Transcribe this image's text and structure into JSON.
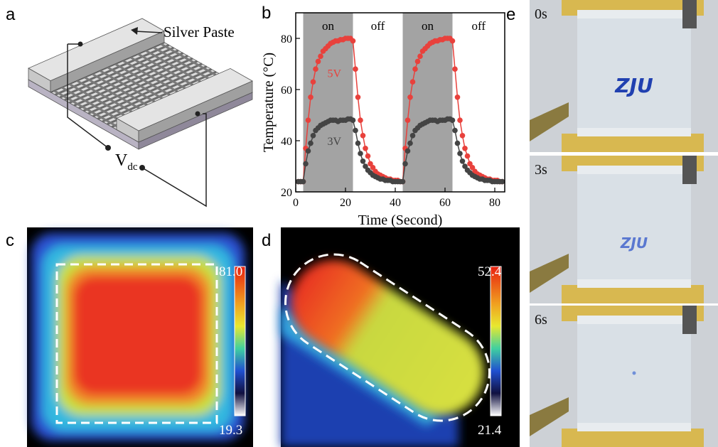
{
  "panels": {
    "a": {
      "label": "a",
      "callout": "Silver Paste",
      "voltage": "V",
      "voltage_subscript": "dc"
    },
    "b": {
      "label": "b"
    },
    "c": {
      "label": "c",
      "scale_max": "81.0",
      "scale_min": "19.3"
    },
    "d": {
      "label": "d",
      "scale_max": "52.4",
      "scale_min": "21.4"
    },
    "e": {
      "label": "e",
      "frames": [
        {
          "time": "0s",
          "text": "ZJU"
        },
        {
          "time": "3s",
          "text": "ZJU"
        },
        {
          "time": "6s"
        }
      ]
    }
  },
  "chart_data": {
    "type": "line",
    "xlabel": "Time (Second)",
    "ylabel": "Temperature (°C)",
    "x": [
      1,
      2,
      3,
      4,
      5,
      6,
      7,
      8,
      9,
      10,
      11,
      12,
      13,
      14,
      15,
      16,
      17,
      18,
      19,
      20,
      21,
      22,
      23,
      24,
      25,
      26,
      27,
      28,
      29,
      30,
      31,
      32,
      33,
      34,
      35,
      36,
      37,
      38,
      39,
      40,
      41,
      42,
      43,
      44,
      45,
      46,
      47,
      48,
      49,
      50,
      51,
      52,
      53,
      54,
      55,
      56,
      57,
      58,
      59,
      60,
      61,
      62,
      63,
      64,
      65,
      66,
      67,
      68,
      69,
      70,
      71,
      72,
      73,
      74,
      75,
      76,
      77,
      78,
      79,
      80,
      81,
      82,
      83
    ],
    "series": [
      {
        "name": "5V",
        "color": "#e8413c",
        "values": [
          24,
          24,
          24,
          37,
          48,
          57,
          63,
          68,
          71,
          73,
          75,
          76,
          77,
          78,
          78.5,
          79,
          79,
          79.5,
          79.5,
          80,
          80,
          80,
          79,
          68,
          57,
          48,
          42,
          37,
          34,
          31,
          29.5,
          28,
          27,
          26.5,
          26,
          25.5,
          25,
          25,
          24.5,
          24.5,
          24.5,
          24,
          24,
          37,
          48,
          57,
          63,
          68,
          71,
          73,
          75,
          76,
          77,
          78,
          78.5,
          79,
          79,
          79.5,
          79.5,
          80,
          80,
          80,
          79,
          68,
          57,
          48,
          42,
          37,
          34,
          31,
          29.5,
          28,
          27,
          26.5,
          26,
          25.5,
          25,
          25,
          24.5,
          24.5,
          24.5,
          24,
          24
        ]
      },
      {
        "name": "3V",
        "color": "#444444",
        "values": [
          24,
          24,
          24,
          31,
          36,
          39,
          42,
          44,
          45,
          46,
          46.5,
          47,
          47.5,
          48,
          48,
          48,
          47.5,
          48,
          48,
          48,
          48.5,
          48.5,
          48,
          44,
          39,
          35,
          32,
          30,
          28.5,
          27.5,
          26.5,
          26,
          25.5,
          25,
          25,
          24.5,
          24.5,
          24.5,
          24,
          24,
          24,
          24,
          24,
          31,
          36,
          39,
          42,
          44,
          45,
          46,
          46.5,
          47,
          47.5,
          48,
          48,
          48,
          47.5,
          48,
          48,
          48,
          48.5,
          48.5,
          48,
          44,
          39,
          35,
          32,
          30,
          28.5,
          27.5,
          26.5,
          26,
          25.5,
          25,
          25,
          24.5,
          24.5,
          24.5,
          24,
          24,
          24,
          24,
          24
        ]
      }
    ],
    "shaded_spans": [
      [
        3,
        23
      ],
      [
        43,
        63
      ]
    ],
    "shaded_color": "#a3a3a3",
    "span_labels": [
      "on",
      "off",
      "on",
      "off"
    ],
    "xlim": [
      0,
      84
    ],
    "ylim": [
      20,
      90
    ],
    "xticks": [
      0,
      20,
      40,
      60,
      80
    ],
    "yticks": [
      20,
      40,
      60,
      80
    ]
  }
}
